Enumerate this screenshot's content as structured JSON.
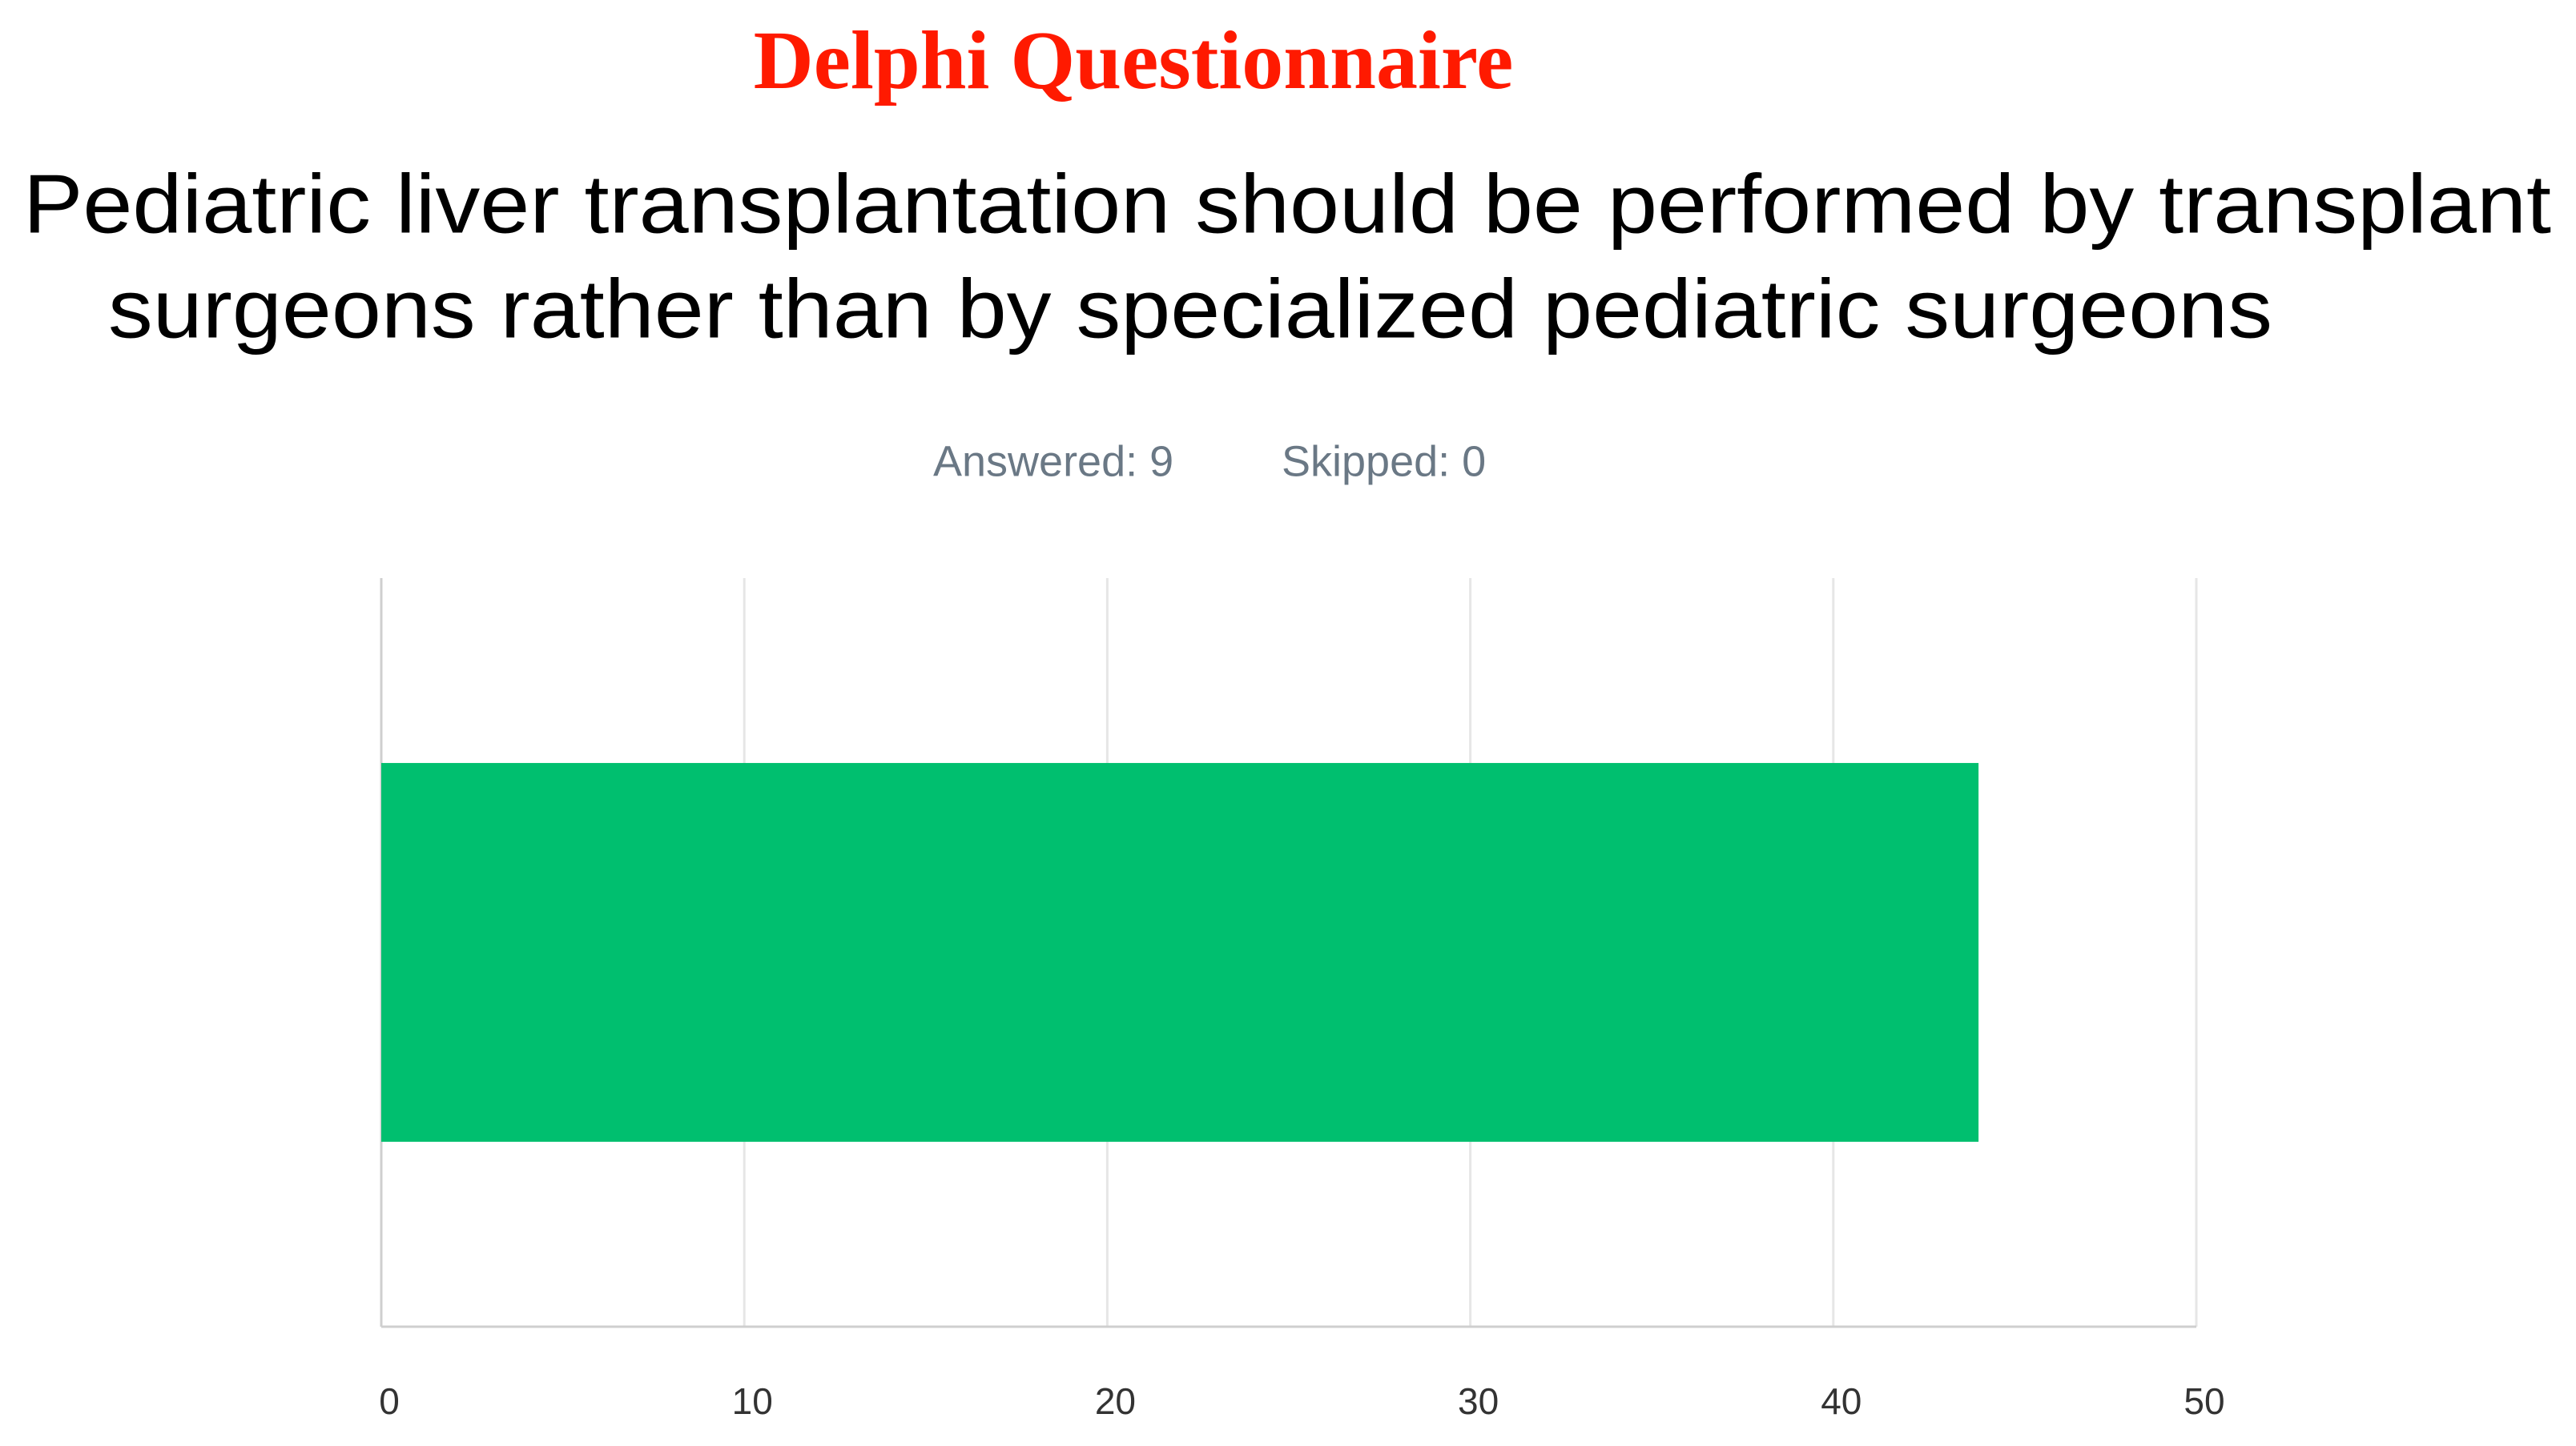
{
  "chart_data": {
    "type": "bar",
    "orientation": "horizontal",
    "title": "Delphi Questionnaire",
    "question": [
      "Pediatric liver transplantation should be performed by transplant",
      "surgeons rather than by specialized pediatric surgeons"
    ],
    "annotations": [
      "Answered: 9",
      "Skipped: 0"
    ],
    "categories": [
      null
    ],
    "values": [
      44
    ],
    "color": "#00bf6f",
    "xlim": [
      0,
      50
    ],
    "xticks": [
      0,
      10,
      20,
      30,
      40,
      50
    ],
    "grid": true
  }
}
